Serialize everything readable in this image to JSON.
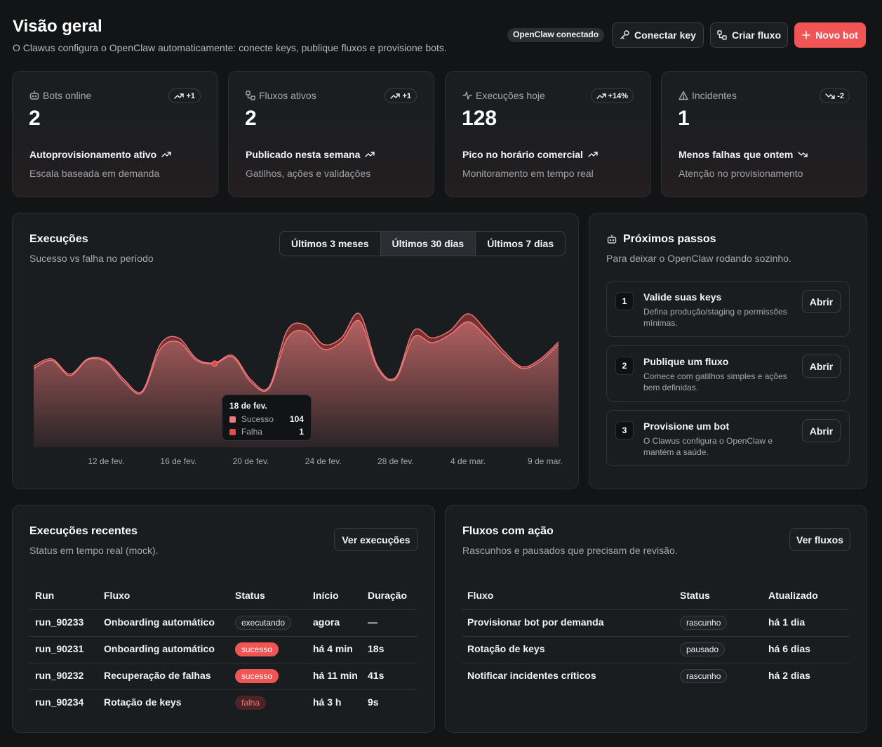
{
  "header": {
    "title": "Visão geral",
    "subtitle": "O Clawus configura o OpenClaw automaticamente: conecte keys, publique fluxos e provisione bots.",
    "status": "OpenClaw conectado",
    "buttons": [
      "Conectar key",
      "Criar fluxo",
      "Novo bot"
    ]
  },
  "stats": [
    {
      "label": "Bots online",
      "value": 2,
      "badge": "+1",
      "trend": "up",
      "headline": "Autoprovisionamento ativo",
      "note": "Escala baseada em demanda"
    },
    {
      "label": "Fluxos ativos",
      "value": 2,
      "badge": "+1",
      "trend": "up",
      "headline": "Publicado nesta semana",
      "note": "Gatilhos, ações e validações"
    },
    {
      "label": "Execuções hoje",
      "value": 128,
      "badge": "+14%",
      "trend": "up",
      "headline": "Pico no horário comercial",
      "note": "Monitoramento em tempo real"
    },
    {
      "label": "Incidentes",
      "value": 1,
      "badge": "-2",
      "trend": "down",
      "headline": "Menos falhas que ontem",
      "note": "Atenção no provisionamento"
    }
  ],
  "chart_data": {
    "type": "area",
    "stacked": true,
    "title": "Execuções",
    "subtitle": "Sucesso vs falha no período",
    "ranges": [
      "Últimos 3 meses",
      "Últimos 30 dias",
      "Últimos 7 dias"
    ],
    "active_range": 1,
    "categories": [
      null,
      null,
      null,
      null,
      "12 de fev.",
      null,
      null,
      null,
      "16 de fev.",
      null,
      null,
      null,
      "20 de fev.",
      null,
      null,
      null,
      "24 de fev.",
      null,
      null,
      null,
      "28 de fev.",
      null,
      null,
      null,
      "4 de mar.",
      null,
      null,
      null,
      null,
      "9 de mar."
    ],
    "series": [
      {
        "name": "Sucesso",
        "color": "#f07a7a",
        "values": [
          98,
          108,
          89,
          109,
          106,
          81,
          68,
          122,
          131,
          108,
          104,
          112,
          81,
          73,
          135,
          144,
          122,
          131,
          157,
          98,
          85,
          137,
          130,
          140,
          156,
          138,
          115,
          98,
          107,
          128
        ]
      },
      {
        "name": "Falha",
        "color": "#e84a4a",
        "values": [
          3,
          2,
          2,
          1,
          2,
          3,
          2,
          6,
          5,
          2,
          1,
          2,
          3,
          2,
          10,
          8,
          6,
          5,
          9,
          3,
          2,
          8,
          6,
          5,
          10,
          7,
          4,
          2,
          3,
          3
        ]
      }
    ],
    "ylim": [
      0,
      200
    ],
    "tooltip": {
      "title": "18 de fev.",
      "index": 10
    }
  },
  "next_steps": {
    "title": "Próximos passos",
    "subtitle": "Para deixar o OpenClaw rodando sozinho.",
    "steps": [
      {
        "number": 1,
        "title": "Valide suas keys",
        "description": "Defina produção/staging e permissões mínimas.",
        "action": "Abrir"
      },
      {
        "number": 2,
        "title": "Publique um fluxo",
        "description": "Comece com gatilhos simples e ações bem definidas.",
        "action": "Abrir"
      },
      {
        "number": 3,
        "title": "Provisione um bot",
        "description": "O Clawus configura o OpenClaw e mantém a saúde.",
        "action": "Abrir"
      }
    ]
  },
  "recent_runs": {
    "title": "Execuções recentes",
    "subtitle": "Status em tempo real (mock).",
    "action": "Ver execuções",
    "table": {
      "columns": [
        "Run",
        "Fluxo",
        "Status",
        "Início",
        "Duração"
      ],
      "status_column": 2,
      "rows": [
        {
          "cells": [
            "run_90233",
            "Onboarding automático",
            "executando",
            "agora",
            "—"
          ],
          "status_tone": "outline"
        },
        {
          "cells": [
            "run_90231",
            "Onboarding automático",
            "sucesso",
            "há 4 min",
            "18s"
          ],
          "status_tone": "solid"
        },
        {
          "cells": [
            "run_90232",
            "Recuperação de falhas",
            "sucesso",
            "há 11 min",
            "41s"
          ],
          "status_tone": "solid"
        },
        {
          "cells": [
            "run_90234",
            "Rotação de keys",
            "falha",
            "há 3 h",
            "9s"
          ],
          "status_tone": "muted"
        }
      ]
    }
  },
  "flows_action": {
    "title": "Fluxos com ação",
    "subtitle": "Rascunhos e pausados que precisam de revisão.",
    "action": "Ver fluxos",
    "table": {
      "columns": [
        "Fluxo",
        "Status",
        "Atualizado"
      ],
      "status_column": 1,
      "rows": [
        {
          "cells": [
            "Provisionar bot por demanda",
            "rascunho",
            "há 1 dia"
          ],
          "status_tone": "outline"
        },
        {
          "cells": [
            "Rotação de keys",
            "pausado",
            "há 6 dias"
          ],
          "status_tone": "outline"
        },
        {
          "cells": [
            "Notificar incidentes críticos",
            "rascunho",
            "há 2 dias"
          ],
          "status_tone": "outline"
        }
      ]
    }
  }
}
